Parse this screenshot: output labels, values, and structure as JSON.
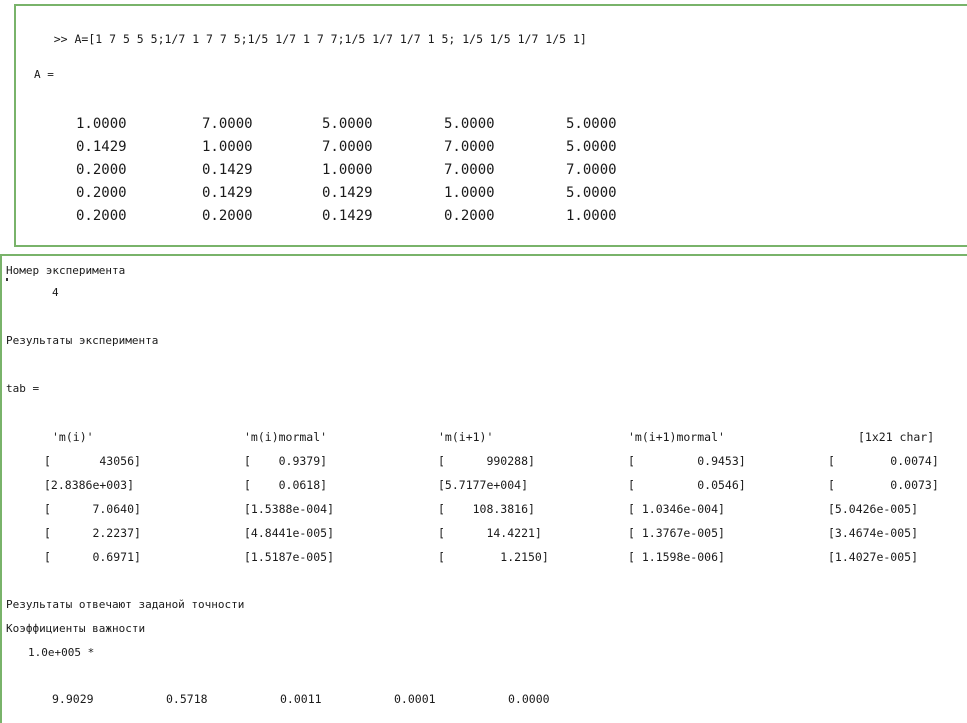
{
  "command": {
    "prompt": ">>",
    "text": "A=[1 7 5 5 5;1/7 1 7 7 5;1/5 1/7 1 7 7;1/5 1/7 1/7 1 5; 1/5 1/5 1/7 1/5 1]"
  },
  "matrix": {
    "label": "A =",
    "rows": [
      [
        "1.0000",
        "7.0000",
        "5.0000",
        "5.0000",
        "5.0000"
      ],
      [
        "0.1429",
        "1.0000",
        "7.0000",
        "7.0000",
        "5.0000"
      ],
      [
        "0.2000",
        "0.1429",
        "1.0000",
        "7.0000",
        "7.0000"
      ],
      [
        "0.2000",
        "0.1429",
        "0.1429",
        "1.0000",
        "5.0000"
      ],
      [
        "0.2000",
        "0.2000",
        "0.1429",
        "0.2000",
        "1.0000"
      ]
    ]
  },
  "experiment": {
    "number_label": "Номер эксперимента",
    "number_value": "4",
    "results_label": "Результаты эксперимента",
    "tab_label": "tab ="
  },
  "tab": {
    "headers": [
      "'m(i)'",
      "'m(i)mormal'",
      "'m(i+1)'",
      "'m(i+1)mormal'",
      "[1x21 char]"
    ],
    "rows": [
      [
        "[       43056]",
        "[    0.9379]",
        "[      990288]",
        "[         0.9453]",
        "[        0.0074]"
      ],
      [
        "[2.8386e+003]",
        "[    0.0618]",
        "[5.7177e+004]",
        "[         0.0546]",
        "[        0.0073]"
      ],
      [
        "[      7.0640]",
        "[1.5388e-004]",
        "[    108.3816]",
        "[ 1.0346e-004]",
        "[5.0426e-005]"
      ],
      [
        "[      2.2237]",
        "[4.8441e-005]",
        "[      14.4221]",
        "[ 1.3767e-005]",
        "[3.4674e-005]"
      ],
      [
        "[      0.6971]",
        "[1.5187e-005]",
        "[        1.2150]",
        "[ 1.1598e-006]",
        "[1.4027e-005]"
      ]
    ]
  },
  "summary": {
    "accuracy_line": "Результаты отвечают заданой точности",
    "coefficients_label": "Коэффициенты важности",
    "scale": "1.0e+005 *",
    "values": [
      "9.9029",
      "0.5718",
      "0.0011",
      "0.0001",
      "0.0000"
    ]
  }
}
